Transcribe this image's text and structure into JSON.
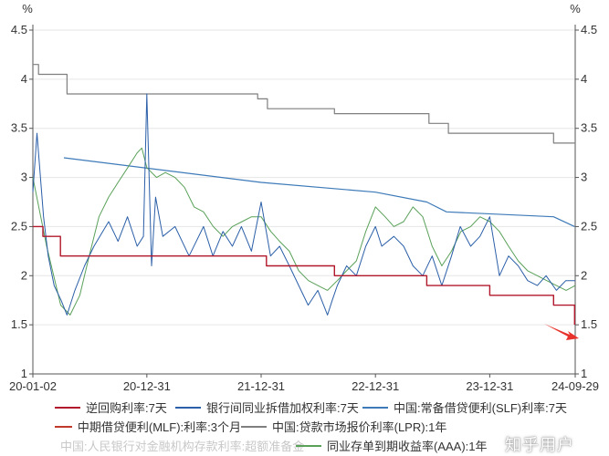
{
  "chart_data": {
    "type": "line",
    "unit_left": "%",
    "unit_right": "%",
    "ylim": [
      1,
      4.5
    ],
    "y_ticks": [
      "1",
      "1.5",
      "2",
      "2.5",
      "3",
      "3.5",
      "4",
      "4.5"
    ],
    "x_ticks": [
      "20-01-02",
      "20-12-31",
      "21-12-31",
      "22-12-31",
      "23-12-31",
      "24-09-29"
    ],
    "grid": "horizontal",
    "legend_position": "bottom",
    "series": [
      {
        "name": "逆回购利率:7天",
        "color": "#b2182b",
        "x": [
          "2020-01-02",
          "2020-02-03",
          "2020-03-30",
          "2020-12-31",
          "2021-12-20",
          "2022-01-17",
          "2022-08-22",
          "2023-06-13",
          "2023-12-31",
          "2024-07-22",
          "2024-09-27"
        ],
        "y": [
          2.5,
          2.4,
          2.2,
          2.2,
          2.2,
          2.1,
          2.0,
          1.9,
          1.8,
          1.7,
          1.5
        ]
      },
      {
        "name": "银行间同业拆借加权利率:7天",
        "color": "#2b5fa8",
        "x": [
          "2020-01-02",
          "2020-01-15",
          "2020-02-05",
          "2020-02-20",
          "2020-03-10",
          "2020-04-01",
          "2020-04-20",
          "2020-05-15",
          "2020-06-15",
          "2020-07-15",
          "2020-08-31",
          "2020-09-30",
          "2020-10-30",
          "2020-11-30",
          "2020-12-20",
          "2020-12-31",
          "2021-01-15",
          "2021-01-28",
          "2021-02-20",
          "2021-03-31",
          "2021-05-15",
          "2021-06-30",
          "2021-07-30",
          "2021-08-31",
          "2021-09-30",
          "2021-10-29",
          "2021-11-30",
          "2021-12-31",
          "2022-01-30",
          "2022-02-28",
          "2022-03-31",
          "2022-04-30",
          "2022-05-30",
          "2022-06-30",
          "2022-07-31",
          "2022-08-15",
          "2022-08-31",
          "2022-09-30",
          "2022-10-31",
          "2022-11-30",
          "2022-12-31",
          "2023-01-20",
          "2023-02-28",
          "2023-03-31",
          "2023-04-30",
          "2023-05-31",
          "2023-06-30",
          "2023-07-31",
          "2023-08-31",
          "2023-09-28",
          "2023-10-31",
          "2023-11-30",
          "2023-12-31",
          "2024-01-31",
          "2024-02-29",
          "2024-03-31",
          "2024-04-30",
          "2024-05-31",
          "2024-06-28",
          "2024-07-31",
          "2024-08-30",
          "2024-09-29"
        ],
        "y": [
          2.85,
          3.45,
          2.6,
          2.2,
          1.9,
          1.75,
          1.6,
          1.85,
          2.1,
          2.3,
          2.55,
          2.35,
          2.6,
          2.3,
          2.4,
          3.85,
          2.1,
          2.8,
          2.4,
          2.5,
          2.2,
          2.5,
          2.2,
          2.45,
          2.3,
          2.5,
          2.25,
          2.75,
          2.2,
          2.3,
          2.1,
          1.9,
          1.7,
          1.85,
          1.6,
          1.75,
          1.9,
          2.1,
          2.0,
          2.3,
          2.5,
          2.3,
          2.4,
          2.3,
          2.1,
          2.0,
          2.2,
          1.9,
          2.2,
          2.5,
          2.3,
          2.4,
          2.6,
          2.0,
          2.2,
          2.1,
          1.95,
          1.9,
          2.0,
          1.85,
          1.95,
          1.95
        ]
      },
      {
        "name": "中国:常备借贷便利(SLF)利率:7天",
        "color": "#3d7ab8",
        "x": [
          "2020-04-10",
          "2021-12-31",
          "2022-12-31",
          "2023-06-13",
          "2023-08-15",
          "2024-07-22",
          "2024-09-27"
        ],
        "y": [
          3.2,
          2.95,
          2.85,
          2.75,
          2.65,
          2.6,
          2.5
        ]
      },
      {
        "name": "中期借贷便利(MLF):利率:3个月",
        "color": "#c0392b",
        "x": [],
        "y": []
      },
      {
        "name": "中国:贷款市场报价利率(LPR):1年",
        "color": "#7f7f7f",
        "x": [
          "2020-01-02",
          "2020-01-20",
          "2020-02-20",
          "2020-04-20",
          "2021-12-20",
          "2022-01-20",
          "2022-08-22",
          "2023-06-20",
          "2023-08-21",
          "2024-07-22",
          "2024-09-27"
        ],
        "y": [
          4.15,
          4.05,
          4.05,
          3.85,
          3.8,
          3.7,
          3.65,
          3.55,
          3.45,
          3.35,
          3.35
        ]
      },
      {
        "name": "中国:人民银行对金融机构存款利率:超额准备金",
        "color": "#d0d0d0",
        "x": [],
        "y": []
      },
      {
        "name": "同业存单到期收益率(AAA):1年",
        "color": "#5aa15a",
        "x": [
          "2020-01-02",
          "2020-02-15",
          "2020-03-31",
          "2020-04-30",
          "2020-05-31",
          "2020-06-30",
          "2020-07-31",
          "2020-08-31",
          "2020-09-30",
          "2020-10-31",
          "2020-11-30",
          "2020-12-15",
          "2020-12-31",
          "2021-01-31",
          "2021-02-28",
          "2021-03-31",
          "2021-04-30",
          "2021-05-31",
          "2021-06-30",
          "2021-07-31",
          "2021-08-31",
          "2021-09-30",
          "2021-10-31",
          "2021-11-30",
          "2021-12-31",
          "2022-01-31",
          "2022-02-28",
          "2022-03-31",
          "2022-04-30",
          "2022-05-31",
          "2022-06-30",
          "2022-07-31",
          "2022-08-31",
          "2022-09-30",
          "2022-10-31",
          "2022-11-30",
          "2022-12-31",
          "2023-01-31",
          "2023-02-28",
          "2023-03-31",
          "2023-04-30",
          "2023-05-31",
          "2023-06-30",
          "2023-07-31",
          "2023-08-31",
          "2023-09-30",
          "2023-10-31",
          "2023-11-30",
          "2023-12-31",
          "2024-01-31",
          "2024-02-29",
          "2024-03-31",
          "2024-04-30",
          "2024-05-31",
          "2024-06-30",
          "2024-07-31",
          "2024-08-31",
          "2024-09-29"
        ],
        "y": [
          3.0,
          2.3,
          1.7,
          1.6,
          1.8,
          2.2,
          2.6,
          2.8,
          2.95,
          3.1,
          3.25,
          3.3,
          3.1,
          3.0,
          3.05,
          3.0,
          2.9,
          2.7,
          2.65,
          2.5,
          2.4,
          2.5,
          2.55,
          2.6,
          2.6,
          2.45,
          2.35,
          2.25,
          2.05,
          1.95,
          1.9,
          1.85,
          1.95,
          2.05,
          2.15,
          2.45,
          2.7,
          2.6,
          2.5,
          2.55,
          2.7,
          2.6,
          2.3,
          2.1,
          2.25,
          2.45,
          2.5,
          2.6,
          2.55,
          2.45,
          2.3,
          2.15,
          2.05,
          2.0,
          1.95,
          1.9,
          1.85,
          1.9
        ]
      }
    ]
  },
  "watermark": "知乎用户"
}
